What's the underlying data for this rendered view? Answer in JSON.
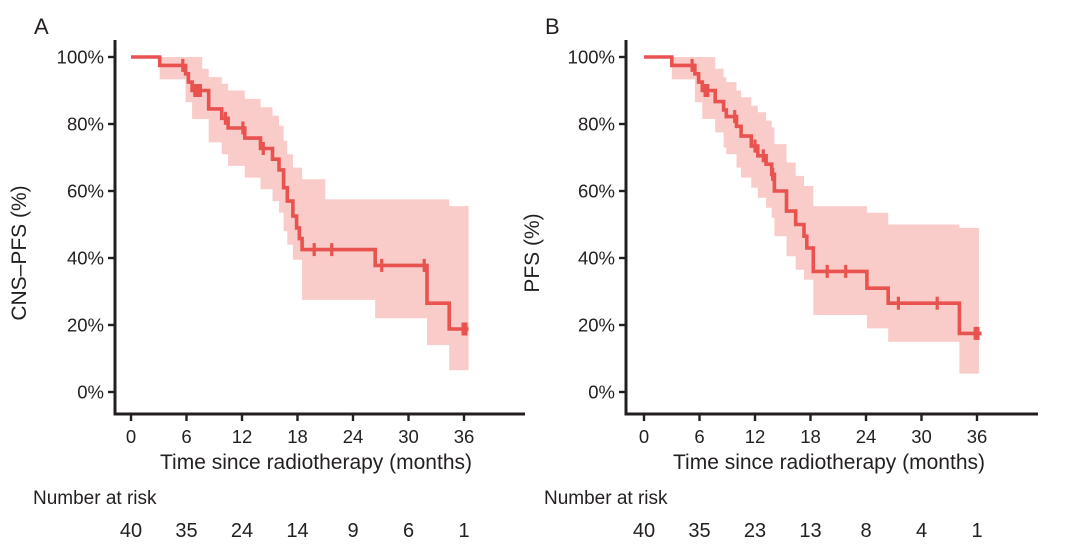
{
  "style": {
    "curve_color": "#e9534f",
    "band_color": "#f9cbc9",
    "axis_color": "#231f20",
    "text_color": "#231f20",
    "background": "#ffffff"
  },
  "chart_data": [
    {
      "type": "line",
      "variant": "kaplan-meier-step",
      "panel_letter": "A",
      "xlabel": "Time since radiotherapy (months)",
      "ylabel": "CNS–PFS (%)",
      "xlim": [
        0,
        39
      ],
      "ylim": [
        0,
        100
      ],
      "xticks": [
        0,
        6,
        12,
        18,
        24,
        30,
        36
      ],
      "yticks": [
        0,
        20,
        40,
        60,
        80,
        100
      ],
      "ytick_labels": [
        "0%",
        "20%",
        "40%",
        "60%",
        "80%",
        "100%"
      ],
      "grid": false,
      "legend": "none",
      "survival_steps": [
        {
          "t": 0,
          "s": 100
        },
        {
          "t": 3.1,
          "s": 97.5
        },
        {
          "t": 5.9,
          "s": 95
        },
        {
          "t": 6.2,
          "s": 92.5
        },
        {
          "t": 6.6,
          "s": 90
        },
        {
          "t": 8.4,
          "s": 84.5
        },
        {
          "t": 9.8,
          "s": 81.7
        },
        {
          "t": 10.5,
          "s": 78.8
        },
        {
          "t": 12.3,
          "s": 75.8
        },
        {
          "t": 14,
          "s": 72.7
        },
        {
          "t": 15.3,
          "s": 69.5
        },
        {
          "t": 16,
          "s": 66.3
        },
        {
          "t": 16.5,
          "s": 61
        },
        {
          "t": 16.9,
          "s": 57
        },
        {
          "t": 17.5,
          "s": 52.5
        },
        {
          "t": 17.9,
          "s": 49
        },
        {
          "t": 18.2,
          "s": 45.8
        },
        {
          "t": 18.5,
          "s": 42.5
        },
        {
          "t": 26.4,
          "s": 37.8
        },
        {
          "t": 32,
          "s": 26.5
        },
        {
          "t": 34.4,
          "s": 18.8
        }
      ],
      "curve_end_t": 36.5,
      "censor_marks": [
        {
          "t": 5.6,
          "s": 97.5
        },
        {
          "t": 6.9,
          "s": 90
        },
        {
          "t": 7.2,
          "s": 90
        },
        {
          "t": 7.5,
          "s": 90
        },
        {
          "t": 10.2,
          "s": 81.7
        },
        {
          "t": 12.1,
          "s": 78.8
        },
        {
          "t": 14.3,
          "s": 72.7
        },
        {
          "t": 19.8,
          "s": 42.5
        },
        {
          "t": 21.7,
          "s": 42.5
        },
        {
          "t": 27.1,
          "s": 37.8
        },
        {
          "t": 31.7,
          "s": 37.8
        },
        {
          "t": 35.9,
          "s": 18.8
        },
        {
          "t": 36.2,
          "s": 18.8
        }
      ],
      "confidence_band": [
        {
          "t": 3.1,
          "lo": 93.3,
          "hi": 100
        },
        {
          "t": 5.9,
          "lo": 86.5,
          "hi": 100
        },
        {
          "t": 6.6,
          "lo": 81.5,
          "hi": 100
        },
        {
          "t": 7.7,
          "lo": 81.5,
          "hi": 96.5
        },
        {
          "t": 8.4,
          "lo": 74.5,
          "hi": 94
        },
        {
          "t": 9.8,
          "lo": 71,
          "hi": 92
        },
        {
          "t": 10.5,
          "lo": 67.5,
          "hi": 90
        },
        {
          "t": 12.3,
          "lo": 64,
          "hi": 87.5
        },
        {
          "t": 14,
          "lo": 60.5,
          "hi": 85
        },
        {
          "t": 15.3,
          "lo": 57,
          "hi": 82.5
        },
        {
          "t": 16,
          "lo": 53.5,
          "hi": 79.5
        },
        {
          "t": 16.5,
          "lo": 48,
          "hi": 75
        },
        {
          "t": 16.9,
          "lo": 44,
          "hi": 71
        },
        {
          "t": 17.5,
          "lo": 39.5,
          "hi": 67
        },
        {
          "t": 18.5,
          "lo": 27.5,
          "hi": 63.5
        },
        {
          "t": 21,
          "lo": 27.5,
          "hi": 57.5
        },
        {
          "t": 26.4,
          "lo": 22,
          "hi": 57.5
        },
        {
          "t": 32,
          "lo": 14,
          "hi": 57.5
        },
        {
          "t": 34.4,
          "lo": 6.5,
          "hi": 55.5
        }
      ],
      "band_end_t": 36.5,
      "number_at_risk": {
        "label": "Number at risk",
        "times": [
          0,
          6,
          12,
          18,
          24,
          30,
          36
        ],
        "values": [
          40,
          35,
          24,
          14,
          9,
          6,
          1
        ]
      }
    },
    {
      "type": "line",
      "variant": "kaplan-meier-step",
      "panel_letter": "B",
      "xlabel": "Time since radiotherapy (months)",
      "ylabel": "PFS (%)",
      "xlim": [
        0,
        39
      ],
      "ylim": [
        0,
        100
      ],
      "xticks": [
        0,
        6,
        12,
        18,
        24,
        30,
        36
      ],
      "yticks": [
        0,
        20,
        40,
        60,
        80,
        100
      ],
      "ytick_labels": [
        "0%",
        "20%",
        "40%",
        "60%",
        "80%",
        "100%"
      ],
      "grid": false,
      "legend": "none",
      "survival_steps": [
        {
          "t": 0,
          "s": 100
        },
        {
          "t": 3,
          "s": 97.5
        },
        {
          "t": 5.5,
          "s": 95
        },
        {
          "t": 5.9,
          "s": 92.5
        },
        {
          "t": 6.3,
          "s": 90
        },
        {
          "t": 7.7,
          "s": 86.7
        },
        {
          "t": 8.6,
          "s": 84.2
        },
        {
          "t": 8.9,
          "s": 82.2
        },
        {
          "t": 10,
          "s": 79.3
        },
        {
          "t": 10.5,
          "s": 76.4
        },
        {
          "t": 11.6,
          "s": 73.4
        },
        {
          "t": 12.3,
          "s": 70.5
        },
        {
          "t": 13.2,
          "s": 68
        },
        {
          "t": 13.8,
          "s": 65
        },
        {
          "t": 14.1,
          "s": 60
        },
        {
          "t": 15.4,
          "s": 54
        },
        {
          "t": 16.4,
          "s": 50
        },
        {
          "t": 17.3,
          "s": 46.5
        },
        {
          "t": 17.6,
          "s": 43
        },
        {
          "t": 18.3,
          "s": 36
        },
        {
          "t": 24.1,
          "s": 31
        },
        {
          "t": 26.4,
          "s": 26.5
        },
        {
          "t": 34.1,
          "s": 17.5
        }
      ],
      "curve_end_t": 36.5,
      "censor_marks": [
        {
          "t": 5.2,
          "s": 97.5
        },
        {
          "t": 6.6,
          "s": 90
        },
        {
          "t": 6.9,
          "s": 90
        },
        {
          "t": 9.8,
          "s": 82.2
        },
        {
          "t": 12,
          "s": 73.4
        },
        {
          "t": 12.9,
          "s": 70.5
        },
        {
          "t": 13.9,
          "s": 65
        },
        {
          "t": 19.8,
          "s": 36
        },
        {
          "t": 21.8,
          "s": 36
        },
        {
          "t": 27.5,
          "s": 26.5
        },
        {
          "t": 31.7,
          "s": 26.5
        },
        {
          "t": 35.8,
          "s": 17.5
        },
        {
          "t": 36.1,
          "s": 17.5
        }
      ],
      "confidence_band": [
        {
          "t": 3,
          "lo": 93.3,
          "hi": 100
        },
        {
          "t": 5.5,
          "lo": 86.5,
          "hi": 100
        },
        {
          "t": 6.3,
          "lo": 81.5,
          "hi": 100
        },
        {
          "t": 7.7,
          "lo": 77.5,
          "hi": 96.5
        },
        {
          "t": 8.6,
          "lo": 73,
          "hi": 94
        },
        {
          "t": 8.9,
          "lo": 71,
          "hi": 92.5
        },
        {
          "t": 10,
          "lo": 67,
          "hi": 90
        },
        {
          "t": 10.5,
          "lo": 64,
          "hi": 88
        },
        {
          "t": 11.6,
          "lo": 61,
          "hi": 85.5
        },
        {
          "t": 12.3,
          "lo": 58,
          "hi": 83.5
        },
        {
          "t": 13.2,
          "lo": 55,
          "hi": 81
        },
        {
          "t": 13.8,
          "lo": 52,
          "hi": 79
        },
        {
          "t": 14.1,
          "lo": 46.5,
          "hi": 74
        },
        {
          "t": 15.4,
          "lo": 40.5,
          "hi": 68.5
        },
        {
          "t": 16.4,
          "lo": 36.5,
          "hi": 64.5
        },
        {
          "t": 17.3,
          "lo": 33.5,
          "hi": 61.5
        },
        {
          "t": 18.3,
          "lo": 23,
          "hi": 55.5
        },
        {
          "t": 24.1,
          "lo": 19,
          "hi": 53.5
        },
        {
          "t": 26.4,
          "lo": 15,
          "hi": 50
        },
        {
          "t": 34.1,
          "lo": 5.5,
          "hi": 49
        }
      ],
      "band_end_t": 36.2,
      "number_at_risk": {
        "label": "Number at risk",
        "times": [
          0,
          6,
          12,
          18,
          24,
          30,
          36
        ],
        "values": [
          40,
          35,
          23,
          13,
          8,
          4,
          1
        ]
      }
    }
  ]
}
